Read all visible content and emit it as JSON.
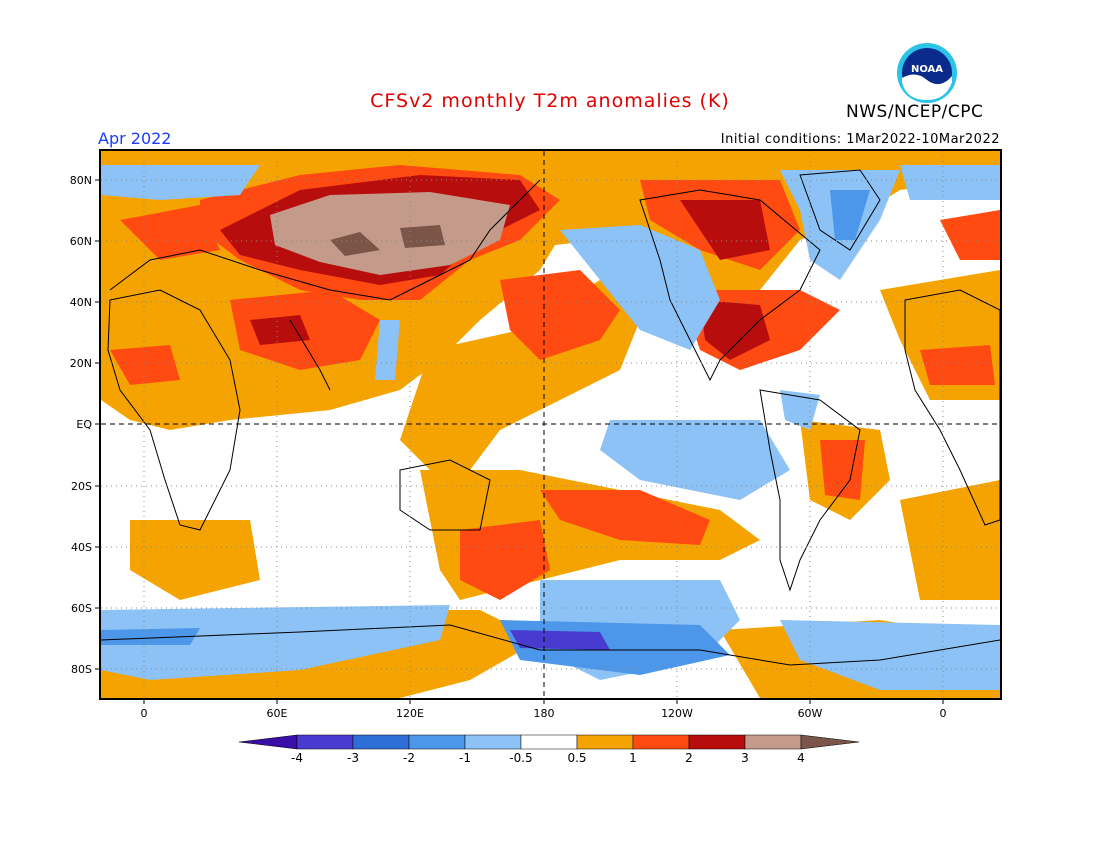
{
  "title": "CFSv2 monthly T2m anomalies (K)",
  "organization": "NWS/NCEP/CPC",
  "logo_text": "NOAA",
  "valid_month": "Apr 2022",
  "initial_conditions": "Initial conditions: 1Mar2022-10Mar2022",
  "lat_labels": [
    "80N",
    "60N",
    "40N",
    "20N",
    "EQ",
    "20S",
    "40S",
    "60S",
    "80S"
  ],
  "lon_labels": [
    "0",
    "60E",
    "120E",
    "180",
    "120W",
    "60W",
    "0"
  ],
  "colorbar": {
    "labels": [
      "-4",
      "-3",
      "-2",
      "-1",
      "-0.5",
      "0.5",
      "1",
      "2",
      "3",
      "4"
    ],
    "colors": [
      "#3a0fa8",
      "#4a3bd0",
      "#2f6ed6",
      "#4d97ea",
      "#8cc2f5",
      "#ffffff",
      "#f5a300",
      "#ff4a12",
      "#b80d0d",
      "#c49a8a",
      "#7a5548"
    ]
  }
}
